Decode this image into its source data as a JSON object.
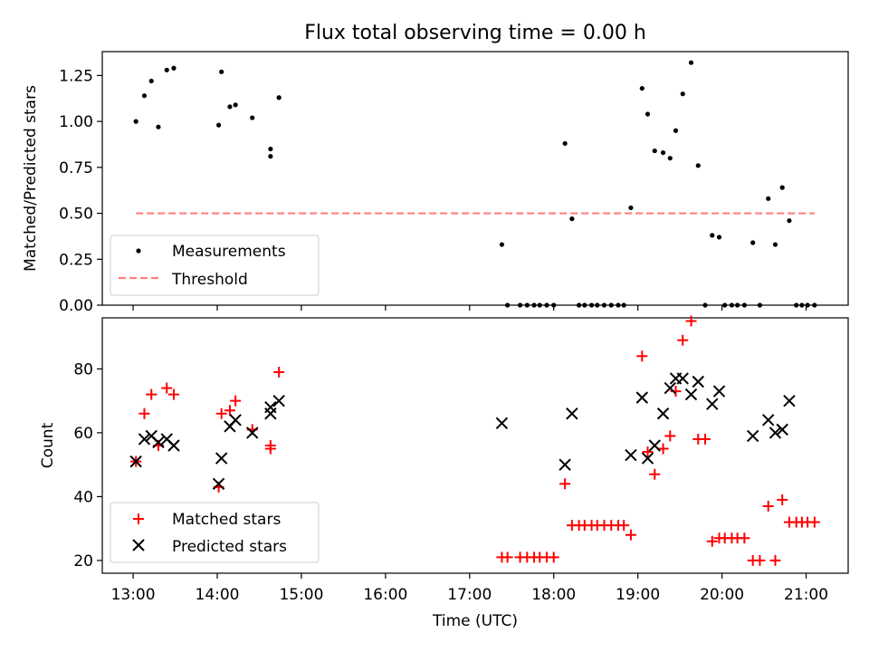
{
  "chart_data": [
    {
      "type": "scatter",
      "title": "Flux total observing time = 0.00 h",
      "xlabel": "",
      "ylabel": "Matched/Predicted stars",
      "ylim": [
        0,
        1.38
      ],
      "yticks": [
        "0.00",
        "0.25",
        "0.50",
        "0.75",
        "1.00",
        "1.25"
      ],
      "grid": false,
      "legend_position": "lower-left",
      "series": [
        {
          "name": "Measurements",
          "marker": "dot",
          "color": "#000000",
          "points": [
            [
              "13:02",
              1.0
            ],
            [
              "13:08",
              1.14
            ],
            [
              "13:13",
              1.22
            ],
            [
              "13:18",
              0.97
            ],
            [
              "13:24",
              1.28
            ],
            [
              "13:29",
              1.29
            ],
            [
              "14:01",
              0.98
            ],
            [
              "14:03",
              1.27
            ],
            [
              "14:09",
              1.08
            ],
            [
              "14:13",
              1.09
            ],
            [
              "14:25",
              1.02
            ],
            [
              "14:38",
              0.85
            ],
            [
              "14:38",
              0.81
            ],
            [
              "14:44",
              1.13
            ],
            [
              "17:23",
              0.33
            ],
            [
              "17:27",
              0.0
            ],
            [
              "17:36",
              0.0
            ],
            [
              "17:41",
              0.0
            ],
            [
              "17:46",
              0.0
            ],
            [
              "17:50",
              0.0
            ],
            [
              "17:55",
              0.0
            ],
            [
              "18:00",
              0.0
            ],
            [
              "18:08",
              0.88
            ],
            [
              "18:13",
              0.47
            ],
            [
              "18:18",
              0.0
            ],
            [
              "18:22",
              0.0
            ],
            [
              "18:27",
              0.0
            ],
            [
              "18:31",
              0.0
            ],
            [
              "18:36",
              0.0
            ],
            [
              "18:41",
              0.0
            ],
            [
              "18:46",
              0.0
            ],
            [
              "18:50",
              0.0
            ],
            [
              "18:55",
              0.53
            ],
            [
              "19:03",
              1.18
            ],
            [
              "19:07",
              1.04
            ],
            [
              "19:12",
              0.84
            ],
            [
              "19:18",
              0.83
            ],
            [
              "19:23",
              0.8
            ],
            [
              "19:27",
              0.95
            ],
            [
              "19:32",
              1.15
            ],
            [
              "19:38",
              1.32
            ],
            [
              "19:43",
              0.76
            ],
            [
              "19:48",
              0.0
            ],
            [
              "19:53",
              0.38
            ],
            [
              "19:58",
              0.37
            ],
            [
              "20:02",
              0.0
            ],
            [
              "20:07",
              0.0
            ],
            [
              "20:11",
              0.0
            ],
            [
              "20:16",
              0.0
            ],
            [
              "20:22",
              0.34
            ],
            [
              "20:27",
              0.0
            ],
            [
              "20:33",
              0.58
            ],
            [
              "20:38",
              0.33
            ],
            [
              "20:43",
              0.64
            ],
            [
              "20:48",
              0.46
            ],
            [
              "20:53",
              0.0
            ],
            [
              "20:57",
              0.0
            ],
            [
              "21:01",
              0.0
            ],
            [
              "21:06",
              0.0
            ]
          ]
        },
        {
          "name": "Threshold",
          "style": "dashed-line",
          "color": "#ff7f7f",
          "points": [
            [
              "13:02",
              0.5
            ],
            [
              "21:06",
              0.5
            ]
          ]
        }
      ]
    },
    {
      "type": "scatter",
      "title": "",
      "xlabel": "Time (UTC)",
      "ylabel": "Count",
      "ylim": [
        16,
        96
      ],
      "yticks": [
        "20",
        "40",
        "60",
        "80"
      ],
      "xlim": [
        "12:38",
        "21:30"
      ],
      "xticks": [
        "13:00",
        "14:00",
        "15:00",
        "16:00",
        "17:00",
        "18:00",
        "19:00",
        "20:00",
        "21:00"
      ],
      "grid": false,
      "legend_position": "lower-left",
      "series": [
        {
          "name": "Matched stars",
          "marker": "plus",
          "color": "#ff0000",
          "points": [
            [
              "13:02",
              51
            ],
            [
              "13:08",
              66
            ],
            [
              "13:13",
              72
            ],
            [
              "13:18",
              56
            ],
            [
              "13:24",
              74
            ],
            [
              "13:29",
              72
            ],
            [
              "14:01",
              43
            ],
            [
              "14:03",
              66
            ],
            [
              "14:09",
              67
            ],
            [
              "14:13",
              70
            ],
            [
              "14:25",
              61
            ],
            [
              "14:38",
              55
            ],
            [
              "14:38",
              56
            ],
            [
              "14:44",
              79
            ],
            [
              "17:23",
              21
            ],
            [
              "17:27",
              21
            ],
            [
              "17:36",
              21
            ],
            [
              "17:41",
              21
            ],
            [
              "17:46",
              21
            ],
            [
              "17:50",
              21
            ],
            [
              "17:55",
              21
            ],
            [
              "18:00",
              21
            ],
            [
              "18:08",
              44
            ],
            [
              "18:13",
              31
            ],
            [
              "18:18",
              31
            ],
            [
              "18:22",
              31
            ],
            [
              "18:27",
              31
            ],
            [
              "18:31",
              31
            ],
            [
              "18:36",
              31
            ],
            [
              "18:41",
              31
            ],
            [
              "18:46",
              31
            ],
            [
              "18:50",
              31
            ],
            [
              "18:55",
              28
            ],
            [
              "19:03",
              84
            ],
            [
              "19:07",
              54
            ],
            [
              "19:12",
              47
            ],
            [
              "19:18",
              55
            ],
            [
              "19:23",
              59
            ],
            [
              "19:27",
              73
            ],
            [
              "19:32",
              89
            ],
            [
              "19:38",
              95
            ],
            [
              "19:43",
              58
            ],
            [
              "19:48",
              58
            ],
            [
              "19:53",
              26
            ],
            [
              "19:58",
              27
            ],
            [
              "20:02",
              27
            ],
            [
              "20:07",
              27
            ],
            [
              "20:11",
              27
            ],
            [
              "20:16",
              27
            ],
            [
              "20:22",
              20
            ],
            [
              "20:27",
              20
            ],
            [
              "20:33",
              37
            ],
            [
              "20:38",
              20
            ],
            [
              "20:43",
              39
            ],
            [
              "20:48",
              32
            ],
            [
              "20:53",
              32
            ],
            [
              "20:57",
              32
            ],
            [
              "21:01",
              32
            ],
            [
              "21:06",
              32
            ]
          ]
        },
        {
          "name": "Predicted stars",
          "marker": "x",
          "color": "#000000",
          "points": [
            [
              "13:02",
              51
            ],
            [
              "13:08",
              58
            ],
            [
              "13:13",
              59
            ],
            [
              "13:18",
              57
            ],
            [
              "13:24",
              58
            ],
            [
              "13:29",
              56
            ],
            [
              "14:01",
              44
            ],
            [
              "14:03",
              52
            ],
            [
              "14:09",
              62
            ],
            [
              "14:13",
              64
            ],
            [
              "14:25",
              60
            ],
            [
              "14:38",
              66
            ],
            [
              "14:38",
              68
            ],
            [
              "14:44",
              70
            ],
            [
              "17:23",
              63
            ],
            [
              "18:08",
              50
            ],
            [
              "18:13",
              66
            ],
            [
              "18:55",
              53
            ],
            [
              "19:03",
              71
            ],
            [
              "19:07",
              52
            ],
            [
              "19:12",
              56
            ],
            [
              "19:18",
              66
            ],
            [
              "19:23",
              74
            ],
            [
              "19:27",
              77
            ],
            [
              "19:32",
              77
            ],
            [
              "19:38",
              72
            ],
            [
              "19:43",
              76
            ],
            [
              "19:53",
              69
            ],
            [
              "19:58",
              73
            ],
            [
              "20:22",
              59
            ],
            [
              "20:33",
              64
            ],
            [
              "20:38",
              60
            ],
            [
              "20:43",
              61
            ],
            [
              "20:48",
              70
            ]
          ]
        }
      ]
    }
  ]
}
